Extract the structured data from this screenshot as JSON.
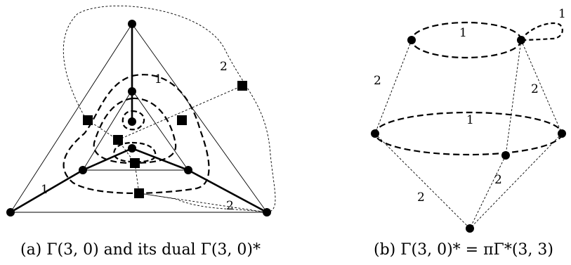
{
  "figure_a": {
    "caption": "(a) Γ(3, 0) and its dual Γ(3, 0)*",
    "labels": {
      "edge_weight_1_inner": "1",
      "edge_weight_2_outer": "2",
      "edge_weight_1_left": "1",
      "edge_weight_2_bottom": "2"
    }
  },
  "figure_b": {
    "caption": "(b) Γ(3, 0)* = πΓ*(3, 3)",
    "labels": {
      "loop_weight_top": "1",
      "top_cycle_weight": "1",
      "left_edge_weight": "2",
      "right_edge_weight": "2",
      "middle_cycle_weight": "1",
      "bottom_left_weight": "2",
      "bottom_right_weight": "2"
    }
  }
}
